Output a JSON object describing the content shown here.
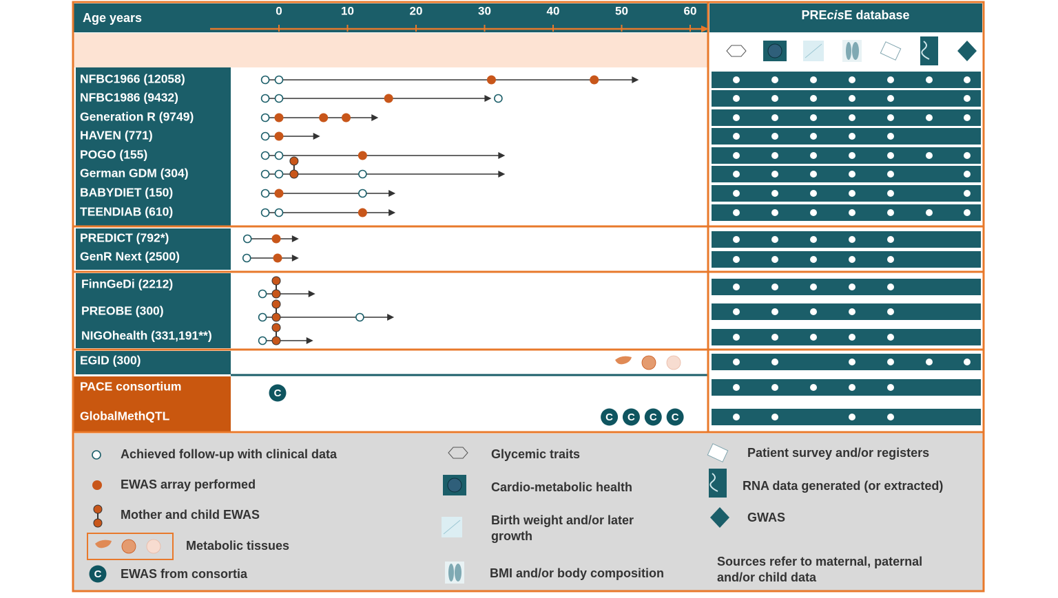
{
  "header": {
    "axis_label": "Age years",
    "ticks": [
      0,
      10,
      20,
      30,
      40,
      50,
      60
    ],
    "database_title_parts": [
      "PRE",
      "cis",
      "E database"
    ]
  },
  "groups": [
    {
      "cohorts": [
        {
          "name": "NFBC1966 (12058)",
          "points": [
            {
              "age": -2,
              "marker": "open"
            },
            {
              "age": 0,
              "marker": "open"
            },
            {
              "age": 31,
              "marker": "filled"
            },
            {
              "age": 46,
              "marker": "filled"
            }
          ],
          "arrow_end": 52.5,
          "database": [
            true,
            true,
            true,
            true,
            true,
            true,
            true
          ]
        },
        {
          "name": "NFBC1986 (9432)",
          "points": [
            {
              "age": -2,
              "marker": "open"
            },
            {
              "age": 0,
              "marker": "open"
            },
            {
              "age": 16,
              "marker": "filled"
            },
            {
              "age": 32,
              "marker": "open"
            }
          ],
          "arrow_end": 31,
          "database": [
            true,
            true,
            true,
            true,
            true,
            false,
            true
          ]
        },
        {
          "name": "Generation R (9749)",
          "points": [
            {
              "age": -2,
              "marker": "open"
            },
            {
              "age": 0,
              "marker": "filled"
            },
            {
              "age": 6.5,
              "marker": "filled"
            },
            {
              "age": 9.8,
              "marker": "filled"
            }
          ],
          "arrow_end": 14.5,
          "database": [
            true,
            true,
            true,
            true,
            true,
            true,
            true
          ]
        },
        {
          "name": "HAVEN (771)",
          "points": [
            {
              "age": -2,
              "marker": "open"
            },
            {
              "age": 0,
              "marker": "filled"
            }
          ],
          "arrow_end": 6,
          "database": [
            true,
            true,
            true,
            true,
            true,
            false,
            false
          ]
        },
        {
          "name": "POGO (155)",
          "points": [
            {
              "age": -2,
              "marker": "open"
            },
            {
              "age": 0,
              "marker": "open"
            },
            {
              "age": 12.2,
              "marker": "filled"
            }
          ],
          "arrow_end": 33,
          "database": [
            true,
            true,
            true,
            true,
            true,
            true,
            true
          ]
        },
        {
          "name": "German GDM (304)",
          "points": [
            {
              "age": -2,
              "marker": "open"
            },
            {
              "age": 0,
              "marker": "open"
            },
            {
              "age": 2.2,
              "marker": "mother-child"
            },
            {
              "age": 12.2,
              "marker": "open"
            }
          ],
          "arrow_end": 33,
          "database": [
            true,
            true,
            true,
            true,
            true,
            false,
            true
          ]
        },
        {
          "name": "BABYDIET (150)",
          "points": [
            {
              "age": -2,
              "marker": "open"
            },
            {
              "age": 0,
              "marker": "filled"
            },
            {
              "age": 12.2,
              "marker": "open"
            }
          ],
          "arrow_end": 17,
          "database": [
            true,
            true,
            true,
            true,
            true,
            false,
            true
          ]
        },
        {
          "name": "TEENDIAB (610)",
          "points": [
            {
              "age": -2,
              "marker": "open"
            },
            {
              "age": 0,
              "marker": "open"
            },
            {
              "age": 12.2,
              "marker": "filled"
            }
          ],
          "arrow_end": 17,
          "database": [
            true,
            true,
            true,
            true,
            true,
            true,
            true
          ]
        }
      ]
    },
    {
      "cohorts": [
        {
          "name": "PREDICT (792*)",
          "points": [
            {
              "age": -4.6,
              "marker": "open"
            },
            {
              "age": -0.4,
              "marker": "filled"
            }
          ],
          "arrow_end": 2.9,
          "database": [
            true,
            true,
            true,
            true,
            true,
            false,
            false
          ]
        },
        {
          "name": "GenR Next (2500)",
          "points": [
            {
              "age": -4.7,
              "marker": "open"
            },
            {
              "age": -0.2,
              "marker": "filled"
            }
          ],
          "arrow_end": 2.9,
          "database": [
            true,
            true,
            true,
            true,
            true,
            false,
            false
          ]
        }
      ]
    },
    {
      "cohorts": [
        {
          "name": "FinnGeDi (2212)",
          "points": [
            {
              "age": -2.4,
              "marker": "open"
            },
            {
              "age": -0.4,
              "marker": "mother-child"
            }
          ],
          "arrow_end": 5.3,
          "database": [
            true,
            true,
            true,
            true,
            true,
            false,
            false
          ]
        },
        {
          "name": "PREOBE (300)",
          "points": [
            {
              "age": -2.4,
              "marker": "open"
            },
            {
              "age": -0.4,
              "marker": "mother-child"
            },
            {
              "age": 11.8,
              "marker": "open"
            }
          ],
          "arrow_end": 16.8,
          "database": [
            true,
            true,
            true,
            true,
            true,
            false,
            false
          ]
        },
        {
          "name": "NIGOhealth (331,191**)",
          "points": [
            {
              "age": -2.4,
              "marker": "open"
            },
            {
              "age": -0.4,
              "marker": "mother-child"
            }
          ],
          "arrow_end": 5,
          "database": [
            true,
            true,
            true,
            true,
            true,
            false,
            false
          ]
        }
      ]
    },
    {
      "cohorts": [
        {
          "name": "EGID (300)",
          "tissues": true,
          "points": [],
          "database": [
            true,
            true,
            false,
            true,
            true,
            true,
            true
          ]
        }
      ]
    },
    {
      "label_style": "consortium",
      "cohorts": [
        {
          "name": "PACE consortium",
          "points": [
            {
              "age": -0.2,
              "marker": "consortium"
            }
          ],
          "database": [
            true,
            true,
            true,
            true,
            true,
            false,
            false
          ]
        },
        {
          "name": "GlobalMethQTL",
          "points": [
            {
              "age": 48.2,
              "marker": "consortium"
            },
            {
              "age": 51.4,
              "marker": "consortium"
            },
            {
              "age": 54.6,
              "marker": "consortium"
            },
            {
              "age": 57.8,
              "marker": "consortium"
            }
          ],
          "database": [
            true,
            true,
            false,
            true,
            true,
            false,
            false
          ]
        }
      ]
    }
  ],
  "legend": {
    "consortium_symbol": "C",
    "follow_up": "Achieved follow-up with clinical data",
    "ewas": "EWAS array performed",
    "mother_child": "Mother and child EWAS",
    "tissues": "Metabolic tissues",
    "consortia": "EWAS from consortia",
    "glycemic": "Glycemic traits",
    "cardio": "Cardio-metabolic health",
    "growth": [
      "Birth  weight  and/or  later",
      "growth"
    ],
    "bmi": "BMI and/or  body composition",
    "survey": "Patient survey and/or registers",
    "rna": "RNA data generated  (or extracted)",
    "gwas": "GWAS",
    "sources": [
      "Sources refer to maternal, paternal",
      "and/or child data"
    ]
  }
}
